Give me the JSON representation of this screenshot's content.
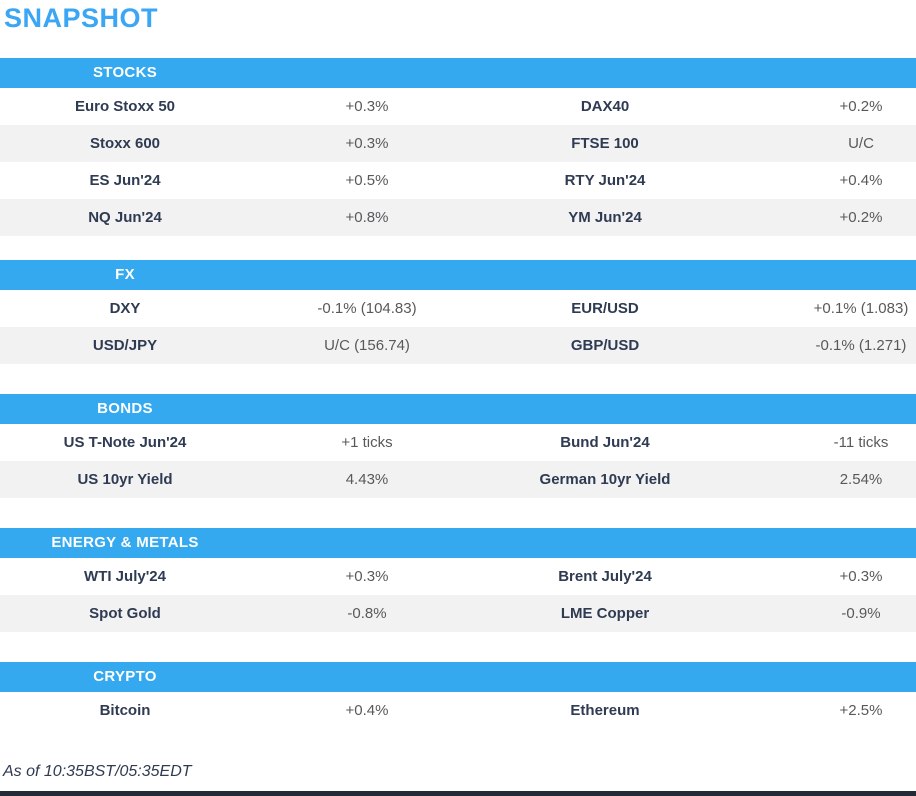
{
  "title": "SNAPSHOT",
  "footer": {
    "as_of": "As of 10:35BST/05:35EDT"
  },
  "colors": {
    "title_blue": "#3ba6f4",
    "accent_blue": "#34a9f0",
    "header_text": "#ffffff",
    "name_text": "#2f3b52",
    "value_text": "#58595b",
    "row_alt": "#f2f2f2",
    "bottom_bar": "#242b36"
  },
  "sections": [
    {
      "label": "STOCKS",
      "rows": [
        [
          "Euro Stoxx 50",
          "+0.3%",
          "DAX40",
          "+0.2%"
        ],
        [
          "Stoxx 600",
          "+0.3%",
          "FTSE 100",
          "U/C"
        ],
        [
          "ES Jun'24",
          "+0.5%",
          "RTY Jun'24",
          "+0.4%"
        ],
        [
          "NQ Jun'24",
          "+0.8%",
          "YM Jun'24",
          "+0.2%"
        ]
      ]
    },
    {
      "label": "FX",
      "rows": [
        [
          "DXY",
          "-0.1% (104.83)",
          "EUR/USD",
          "+0.1% (1.083)"
        ],
        [
          "USD/JPY",
          "U/C (156.74)",
          "GBP/USD",
          "-0.1% (1.271)"
        ]
      ]
    },
    {
      "label": "BONDS",
      "rows": [
        [
          "US T-Note Jun'24",
          "+1 ticks",
          "Bund Jun'24",
          "-11 ticks"
        ],
        [
          "US 10yr Yield",
          "4.43%",
          "German 10yr Yield",
          "2.54%"
        ]
      ]
    },
    {
      "label": "ENERGY & METALS",
      "rows": [
        [
          "WTI July'24",
          "+0.3%",
          "Brent July'24",
          "+0.3%"
        ],
        [
          "Spot Gold",
          "-0.8%",
          "LME Copper",
          "-0.9%"
        ]
      ]
    },
    {
      "label": "CRYPTO",
      "rows": [
        [
          "Bitcoin",
          "+0.4%",
          "Ethereum",
          "+2.5%"
        ]
      ]
    }
  ]
}
